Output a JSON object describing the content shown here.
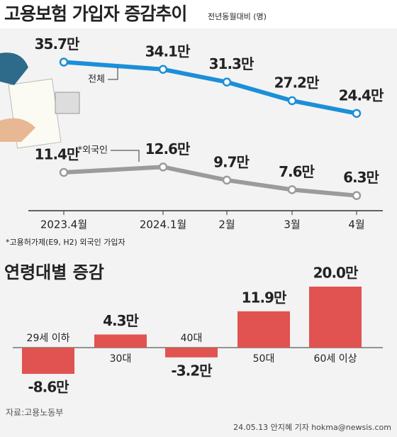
{
  "chart_data": [
    {
      "type": "line",
      "title": "고용보험 가입자 증감추이",
      "subtitle": "전년동월대비 (명)",
      "categories": [
        "2023.4월",
        "2024.1월",
        "2월",
        "3월",
        "4월"
      ],
      "series": [
        {
          "name": "전체",
          "color": "#1b8fd8",
          "values": [
            35.7,
            34.1,
            31.3,
            27.2,
            24.4
          ],
          "value_labels": [
            "35.7만",
            "34.1만",
            "31.3만",
            "27.2만",
            "24.4만"
          ]
        },
        {
          "name": "*외국인",
          "color": "#9b9b9b",
          "values": [
            11.4,
            12.6,
            9.7,
            7.6,
            6.3
          ],
          "value_labels": [
            "11.4만",
            "12.6만",
            "9.7만",
            "7.6만",
            "6.3만"
          ]
        }
      ],
      "footnote": "*고용허가제(E9, H2) 외국인 가입자"
    },
    {
      "type": "bar",
      "title": "연령대별 증감",
      "categories": [
        "29세 이하",
        "30대",
        "40대",
        "50대",
        "60세 이상"
      ],
      "values": [
        -8.6,
        4.3,
        -3.2,
        11.9,
        20.0
      ],
      "value_labels": [
        "-8.6만",
        "4.3만",
        "-3.2만",
        "11.9만",
        "20.0만"
      ],
      "color": "#e05350",
      "source": "자료:고용노동부",
      "credit": "24.05.13 안지혜 기자 hokma@newsis.com"
    }
  ]
}
